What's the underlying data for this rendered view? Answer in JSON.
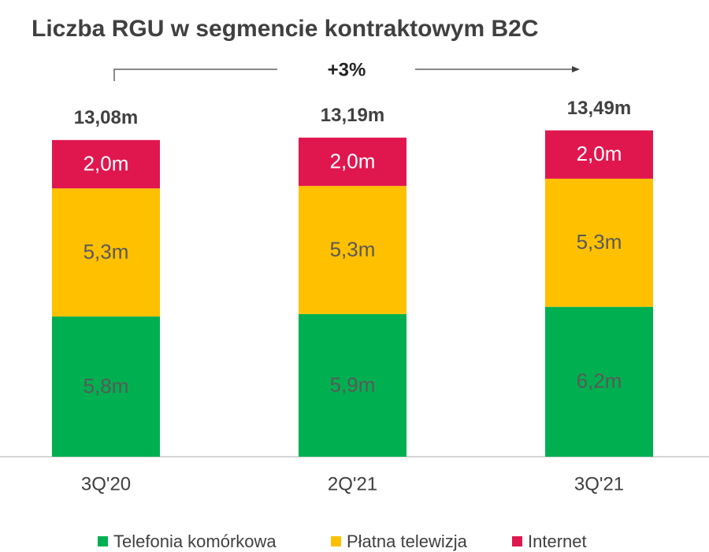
{
  "chart_data": {
    "type": "stacked_bar",
    "title": "Liczba RGU w segmencie kontraktowym B2C",
    "annotation": "+3%",
    "categories": [
      "3Q'20",
      "2Q'21",
      "3Q'21"
    ],
    "series": [
      {
        "name": "Telefonia komórkowa",
        "color": "#00b050",
        "values": [
          5.8,
          5.9,
          6.2
        ],
        "value_labels": [
          "5,8m",
          "5,9m",
          "6,2m"
        ]
      },
      {
        "name": "Płatna telewizja",
        "color": "#ffc000",
        "values": [
          5.3,
          5.3,
          5.3
        ],
        "value_labels": [
          "5,3m",
          "5,3m",
          "5,3m"
        ]
      },
      {
        "name": "Internet",
        "color": "#e0174f",
        "values": [
          2.0,
          2.0,
          2.0
        ],
        "value_labels": [
          "2,0m",
          "2,0m",
          "2,0m"
        ]
      }
    ],
    "totals": {
      "values": [
        13.08,
        13.19,
        13.49
      ],
      "value_labels": [
        "13,08m",
        "13,19m",
        "13,49m"
      ]
    }
  }
}
